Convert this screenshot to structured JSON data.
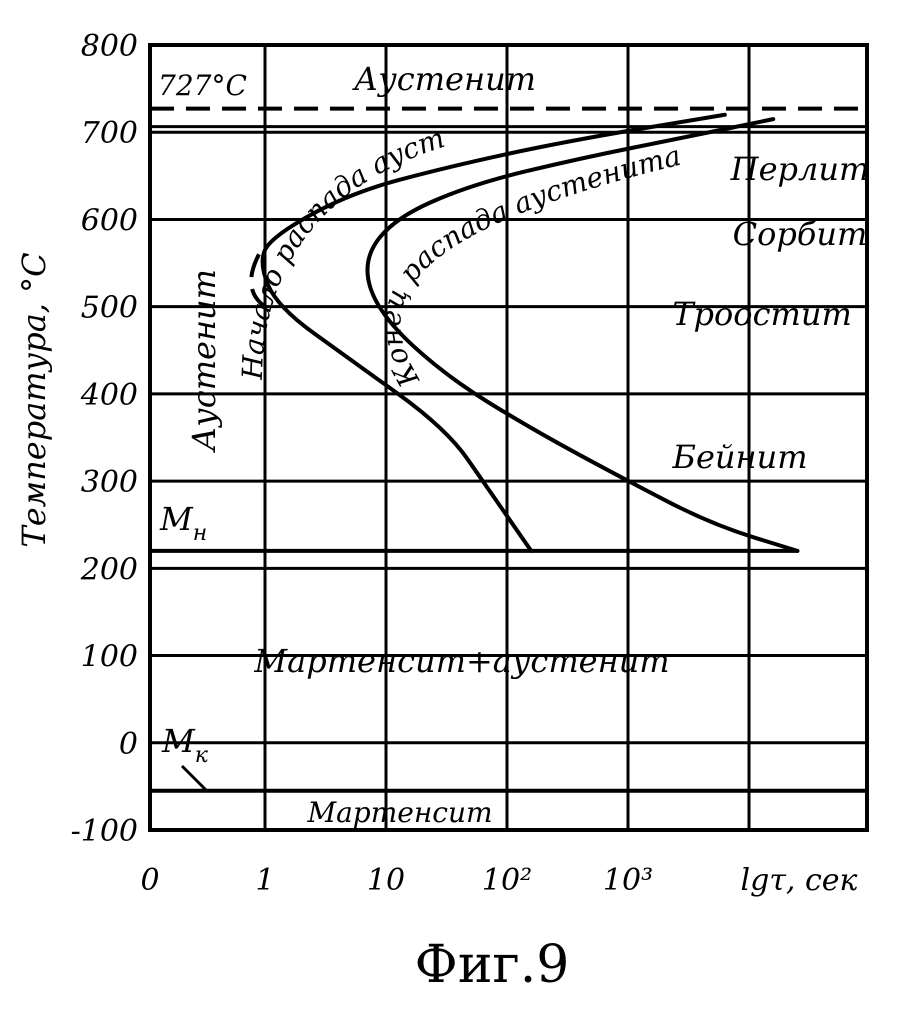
{
  "chart_data": {
    "type": "line",
    "ylabel": "Температура, °С",
    "xlabel": "lgτ, сек",
    "y_ticks": [
      "800",
      "700",
      "600",
      "500",
      "400",
      "300",
      "200",
      "100",
      "0",
      "-100"
    ],
    "x_ticks": [
      "0",
      "1",
      "10",
      "10²",
      "10³",
      "lgτ, сек"
    ],
    "ylim": [
      -100,
      800
    ],
    "x_scale": "log",
    "grid": true,
    "a1_label": "727°С",
    "a1_temperature": 727,
    "mn_label": "Мн",
    "mn_temperature": 220,
    "mk_label": "Мк",
    "mk_temperature": -55,
    "regions": {
      "austenite_top": "Аустенит",
      "austenite_left": "Аустенит",
      "pearlite": "Перлит",
      "sorbite": "Сорбит",
      "troostite": "Троостит",
      "bainite": "Бейнит",
      "martensite_austenite": "Мартенсит+аустенит",
      "martensite": "Мартенсит"
    },
    "series": [
      {
        "name": "Начало распада аустенита",
        "x_log10": [
          3.8,
          2.5,
          1.5,
          0.7,
          0.05,
          -0.05,
          0.1,
          0.7,
          1.5,
          1.85,
          2.05,
          2.2
        ],
        "y": [
          720,
          690,
          660,
          630,
          580,
          550,
          500,
          440,
          360,
          290,
          250,
          220
        ]
      },
      {
        "name": "Конец распада аустенита",
        "x_log10": [
          4.2,
          3.5,
          2.6,
          1.7,
          1.05,
          0.8,
          0.95,
          1.5,
          2.2,
          3.0,
          3.7,
          4.4
        ],
        "y": [
          715,
          695,
          670,
          640,
          600,
          550,
          490,
          420,
          360,
          300,
          250,
          220
        ]
      }
    ]
  },
  "figure": {
    "caption": "Фиг.9"
  }
}
